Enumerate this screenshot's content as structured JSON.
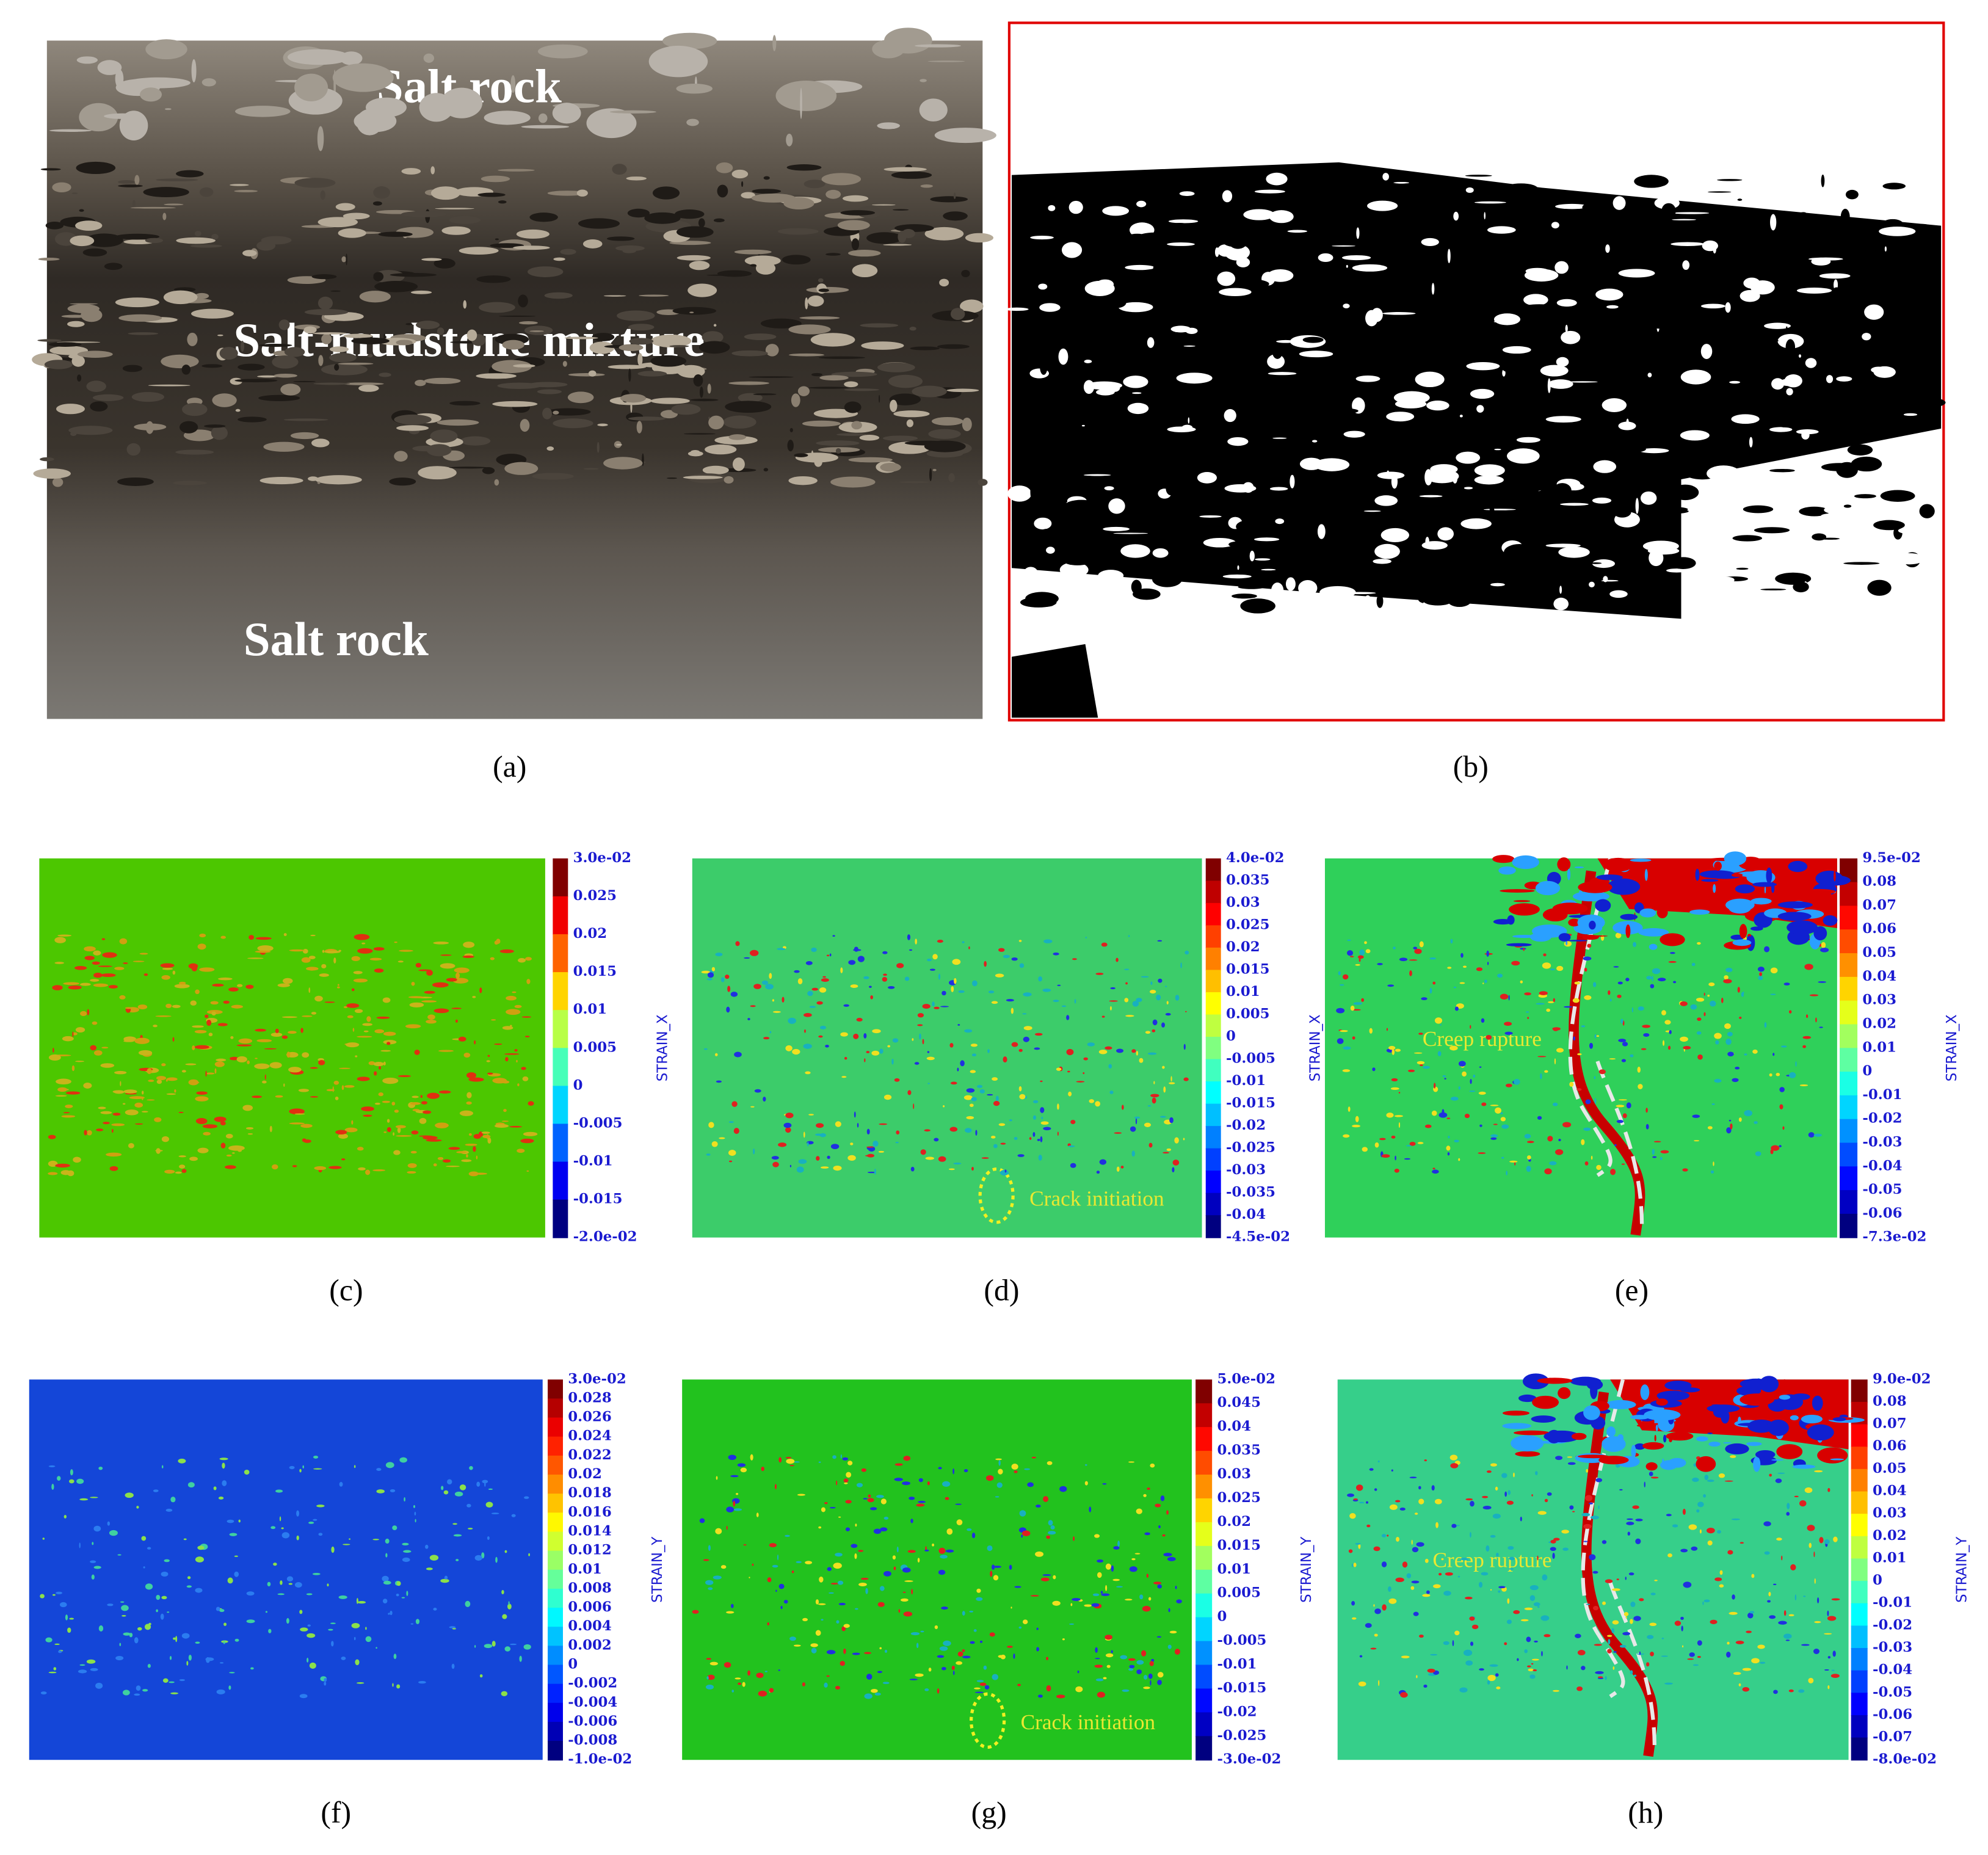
{
  "panels": [
    {
      "label": "(a)",
      "texts": [
        "Salt rock",
        "Salt-mudstone mixture",
        "Salt rock"
      ]
    },
    {
      "label": "(b)"
    },
    {
      "label": "(c)",
      "colorbar": {
        "title": "STRAIN_X",
        "labels": [
          "3.0e-02",
          "0.025",
          "0.02",
          "0.015",
          "0.01",
          "0.005",
          "0",
          "-0.005",
          "-0.01",
          "-0.015",
          "-2.0e-02"
        ]
      }
    },
    {
      "label": "(d)",
      "texts": [
        "Crack initiation"
      ],
      "colorbar": {
        "title": "STRAIN_X",
        "labels": [
          "4.0e-02",
          "0.035",
          "0.03",
          "0.025",
          "0.02",
          "0.015",
          "0.01",
          "0.005",
          "0",
          "-0.005",
          "-0.01",
          "-0.015",
          "-0.02",
          "-0.025",
          "-0.03",
          "-0.035",
          "-0.04",
          "-4.5e-02"
        ]
      }
    },
    {
      "label": "(e)",
      "texts": [
        "Creep rupture"
      ],
      "colorbar": {
        "title": "STRAIN_X",
        "labels": [
          "9.5e-02",
          "0.08",
          "0.07",
          "0.06",
          "0.05",
          "0.04",
          "0.03",
          "0.02",
          "0.01",
          "0",
          "-0.01",
          "-0.02",
          "-0.03",
          "-0.04",
          "-0.05",
          "-0.06",
          "-7.3e-02"
        ]
      }
    },
    {
      "label": "(f)",
      "colorbar": {
        "title": "STRAIN_Y",
        "labels": [
          "3.0e-02",
          "0.028",
          "0.026",
          "0.024",
          "0.022",
          "0.02",
          "0.018",
          "0.016",
          "0.014",
          "0.012",
          "0.01",
          "0.008",
          "0.006",
          "0.004",
          "0.002",
          "0",
          "-0.002",
          "-0.004",
          "-0.006",
          "-0.008",
          "-1.0e-02"
        ]
      }
    },
    {
      "label": "(g)",
      "texts": [
        "Crack initiation"
      ],
      "colorbar": {
        "title": "STRAIN_Y",
        "labels": [
          "5.0e-02",
          "0.045",
          "0.04",
          "0.035",
          "0.03",
          "0.025",
          "0.02",
          "0.015",
          "0.01",
          "0.005",
          "0",
          "-0.005",
          "-0.01",
          "-0.015",
          "-0.02",
          "-0.025",
          "-3.0e-02"
        ]
      }
    },
    {
      "label": "(h)",
      "texts": [
        "Creep rupture"
      ],
      "colorbar": {
        "title": "STRAIN_Y",
        "labels": [
          "9.0e-02",
          "0.08",
          "0.07",
          "0.06",
          "0.05",
          "0.04",
          "0.03",
          "0.02",
          "0.01",
          "0",
          "-0.01",
          "-0.02",
          "-0.03",
          "-0.04",
          "-0.05",
          "-0.06",
          "-0.07",
          "-8.0e-02"
        ]
      }
    }
  ]
}
